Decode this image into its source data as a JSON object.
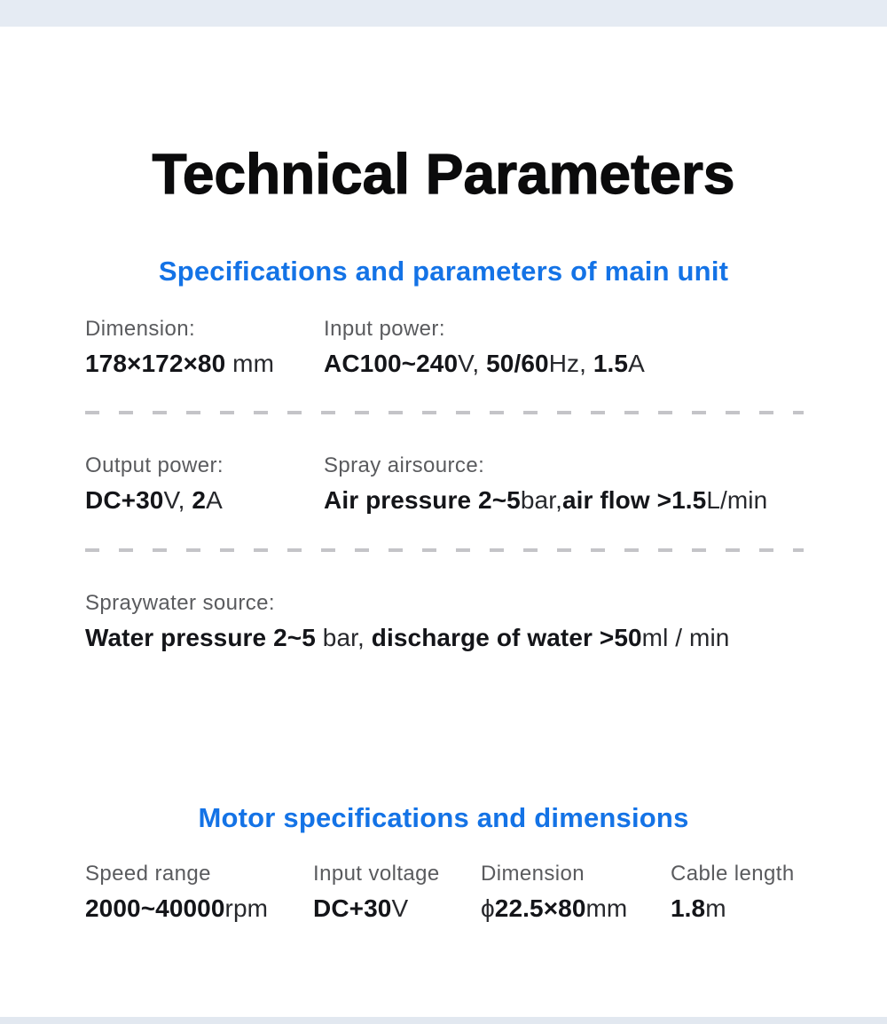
{
  "title": "Technical Parameters",
  "colors": {
    "accent_blue": "#1473e6",
    "label_gray": "#5a5b5e",
    "value_black": "#141519",
    "top_bar": "#e5ebf3",
    "bottom_bar": "#e2e8f0",
    "dash_gray": "#c4c4c8"
  },
  "sections": [
    {
      "heading": "Specifications and parameters of main unit",
      "rows": [
        {
          "cells": [
            {
              "label": "Dimension:",
              "value": [
                {
                  "t": "178×172×80",
                  "b": true
                },
                {
                  "t": " mm",
                  "b": false
                }
              ]
            },
            {
              "label": "Input power:",
              "value": [
                {
                  "t": "AC100~240",
                  "b": true
                },
                {
                  "t": "V, ",
                  "b": false
                },
                {
                  "t": "50/60",
                  "b": true
                },
                {
                  "t": "Hz, ",
                  "b": false
                },
                {
                  "t": "1.5",
                  "b": true
                },
                {
                  "t": "A",
                  "b": false
                }
              ]
            }
          ]
        },
        {
          "cells": [
            {
              "label": "Output power:",
              "value": [
                {
                  "t": "DC+30",
                  "b": true
                },
                {
                  "t": "V, ",
                  "b": false
                },
                {
                  "t": "2",
                  "b": true
                },
                {
                  "t": "A",
                  "b": false
                }
              ]
            },
            {
              "label": "Spray airsource:",
              "value": [
                {
                  "t": "Air pressure 2~5",
                  "b": true
                },
                {
                  "t": "bar,",
                  "b": false
                },
                {
                  "t": "air flow >1.5",
                  "b": true
                },
                {
                  "t": "L/min",
                  "b": false
                }
              ]
            }
          ]
        },
        {
          "cells": [
            {
              "label": "Spraywater source:",
              "value": [
                {
                  "t": "Water pressure 2~5",
                  "b": true
                },
                {
                  "t": " bar,  ",
                  "b": false
                },
                {
                  "t": "discharge of water >50",
                  "b": true
                },
                {
                  "t": "ml / min",
                  "b": false
                }
              ]
            }
          ]
        }
      ]
    },
    {
      "heading": "Motor specifications and dimensions",
      "columns": [
        {
          "label": "Speed range",
          "value": [
            {
              "t": "2000~40000",
              "b": true
            },
            {
              "t": "rpm",
              "b": false
            }
          ]
        },
        {
          "label": "Input voltage",
          "value": [
            {
              "t": "DC+30",
              "b": true
            },
            {
              "t": "V",
              "b": false
            }
          ]
        },
        {
          "label": "Dimension",
          "value": [
            {
              "t": "ϕ",
              "b": false
            },
            {
              "t": "22.5×80",
              "b": true
            },
            {
              "t": "mm",
              "b": false
            }
          ]
        },
        {
          "label": "Cable length",
          "value": [
            {
              "t": "1.8",
              "b": true
            },
            {
              "t": "m",
              "b": false
            }
          ]
        }
      ]
    }
  ]
}
